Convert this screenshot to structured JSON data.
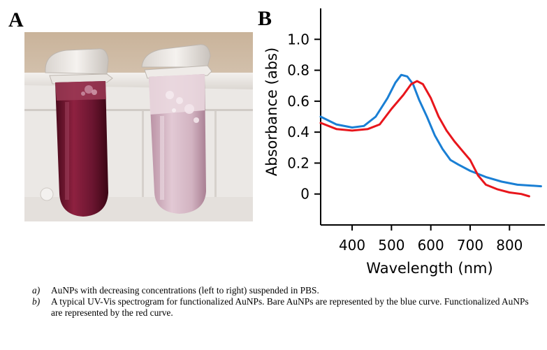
{
  "panels": {
    "a_label": "A",
    "b_label": "B"
  },
  "chart_data": {
    "type": "line",
    "title": "",
    "xlabel": "Wavelength (nm)",
    "ylabel": "Absorbance (abs)",
    "xlim": [
      320,
      890
    ],
    "ylim": [
      -0.2,
      1.2
    ],
    "x_ticks": [
      400,
      500,
      600,
      700,
      800
    ],
    "y_ticks": [
      0,
      0.2,
      0.4,
      0.6,
      0.8,
      1.0
    ],
    "y_tick_labels": [
      "0",
      "0.2",
      "0.4",
      "0.6",
      "0.8",
      "1.0"
    ],
    "grid": false,
    "series": [
      {
        "color": "#1a7fd4",
        "x": [
          320,
          360,
          400,
          430,
          460,
          490,
          510,
          525,
          540,
          555,
          570,
          590,
          610,
          630,
          650,
          670,
          700,
          740,
          780,
          820,
          850,
          880
        ],
        "y": [
          0.5,
          0.45,
          0.43,
          0.44,
          0.5,
          0.62,
          0.72,
          0.77,
          0.76,
          0.71,
          0.61,
          0.5,
          0.38,
          0.29,
          0.22,
          0.19,
          0.15,
          0.11,
          0.08,
          0.06,
          0.055,
          0.05
        ]
      },
      {
        "color": "#e8161c",
        "x": [
          320,
          360,
          400,
          440,
          470,
          500,
          530,
          550,
          565,
          580,
          600,
          620,
          640,
          660,
          680,
          700,
          720,
          740,
          770,
          800,
          830,
          850
        ],
        "y": [
          0.46,
          0.42,
          0.41,
          0.42,
          0.45,
          0.55,
          0.64,
          0.71,
          0.73,
          0.71,
          0.62,
          0.5,
          0.41,
          0.34,
          0.28,
          0.22,
          0.12,
          0.06,
          0.03,
          0.01,
          0.0,
          -0.015
        ]
      }
    ]
  },
  "caption": {
    "items": [
      {
        "letter": "a)",
        "text": "AuNPs with decreasing concentrations (left to right) suspended in PBS."
      },
      {
        "letter": "b)",
        "text": "A typical UV-Vis spectrogram for functionalized AuNPs. Bare AuNPs are represented by the blue curve. Functionalized AuNPs are represented by the red curve."
      }
    ]
  }
}
